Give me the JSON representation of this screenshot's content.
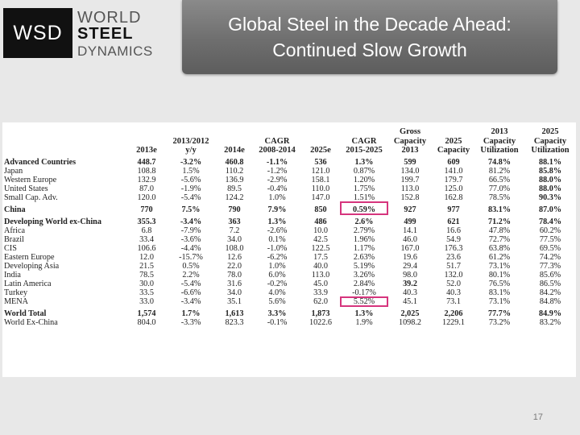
{
  "logo": {
    "box": "WSD",
    "line1": "WORLD",
    "line2": "STEEL",
    "line3": "DYNAMICS"
  },
  "title": {
    "line1": "Global Steel in the Decade Ahead:",
    "line2": "Continued Slow Growth"
  },
  "headers": [
    "",
    "2013e",
    "2013/2012 y/y",
    "2014e",
    "CAGR 2008-2014",
    "2025e",
    "CAGR 2015-2025",
    "Gross Capacity 2013",
    "2025 Capacity",
    "2013 Capacity Utilization",
    "2025 Capacity Utilization"
  ],
  "rows": [
    [
      "Advanced Countries",
      "448.7",
      "-3.2%",
      "460.8",
      "-1.1%",
      "536",
      "1.3%",
      "599",
      "609",
      "74.8%",
      "88.1%"
    ],
    [
      "Japan",
      "108.8",
      "1.5%",
      "110.2",
      "-1.2%",
      "121.0",
      "0.87%",
      "134.0",
      "141.0",
      "81.2%",
      "85.8%"
    ],
    [
      "Western Europe",
      "132.9",
      "-5.6%",
      "136.9",
      "-2.9%",
      "158.1",
      "1.20%",
      "199.7",
      "179.7",
      "66.5%",
      "88.0%"
    ],
    [
      "United States",
      "87.0",
      "-1.9%",
      "89.5",
      "-0.4%",
      "110.0",
      "1.75%",
      "113.0",
      "125.0",
      "77.0%",
      "88.0%"
    ],
    [
      "Small Cap. Adv.",
      "120.0",
      "-5.4%",
      "124.2",
      "1.0%",
      "147.0",
      "1.51%",
      "152.8",
      "162.8",
      "78.5%",
      "90.3%"
    ],
    [
      "China",
      "770",
      "7.5%",
      "790",
      "7.9%",
      "850",
      "0.59%",
      "927",
      "977",
      "83.1%",
      "87.0%"
    ],
    [
      "Developing World ex-China",
      "355.3",
      "-3.4%",
      "363",
      "1.3%",
      "486",
      "2.6%",
      "499",
      "621",
      "71.2%",
      "78.4%"
    ],
    [
      "Africa",
      "6.8",
      "-7.9%",
      "7.2",
      "-2.6%",
      "10.0",
      "2.79%",
      "14.1",
      "16.6",
      "47.8%",
      "60.2%"
    ],
    [
      "Brazil",
      "33.4",
      "-3.6%",
      "34.0",
      "0.1%",
      "42.5",
      "1.96%",
      "46.0",
      "54.9",
      "72.7%",
      "77.5%"
    ],
    [
      "CIS",
      "106.6",
      "-4.4%",
      "108.0",
      "-1.0%",
      "122.5",
      "1.17%",
      "167.0",
      "176.3",
      "63.8%",
      "69.5%"
    ],
    [
      "Eastern Europe",
      "12.0",
      "-15.7%",
      "12.6",
      "-6.2%",
      "17.5",
      "2.63%",
      "19.6",
      "23.6",
      "61.2%",
      "74.2%"
    ],
    [
      "Developing Asia",
      "21.5",
      "0.5%",
      "22.0",
      "1.0%",
      "40.0",
      "5.19%",
      "29.4",
      "51.7",
      "73.1%",
      "77.3%"
    ],
    [
      "India",
      "78.5",
      "2.2%",
      "78.0",
      "6.0%",
      "113.0",
      "3.26%",
      "98.0",
      "132.0",
      "80.1%",
      "85.6%"
    ],
    [
      "Latin America",
      "30.0",
      "-5.4%",
      "31.6",
      "-0.2%",
      "45.0",
      "2.84%",
      "39.2",
      "52.0",
      "76.5%",
      "86.5%"
    ],
    [
      "Turkey",
      "33.5",
      "-6.6%",
      "34.0",
      "4.0%",
      "33.9",
      "-0.17%",
      "40.3",
      "40.3",
      "83.1%",
      "84.2%"
    ],
    [
      "MENA",
      "33.0",
      "-3.4%",
      "35.1",
      "5.6%",
      "62.0",
      "5.52%",
      "45.1",
      "73.1",
      "73.1%",
      "84.8%"
    ],
    [
      "World Total",
      "1,574",
      "1.7%",
      "1,613",
      "3.3%",
      "1,873",
      "1.3%",
      "2,025",
      "2,206",
      "77.7%",
      "84.9%"
    ],
    [
      "World Ex-China",
      "804.0",
      "-3.3%",
      "823.3",
      "-0.1%",
      "1022.6",
      "1.9%",
      "1098.2",
      "1229.1",
      "73.2%",
      "83.2%"
    ]
  ],
  "page_number": "17",
  "colors": {
    "highlight": "#d6357d",
    "banner": "#6e6e6e"
  }
}
